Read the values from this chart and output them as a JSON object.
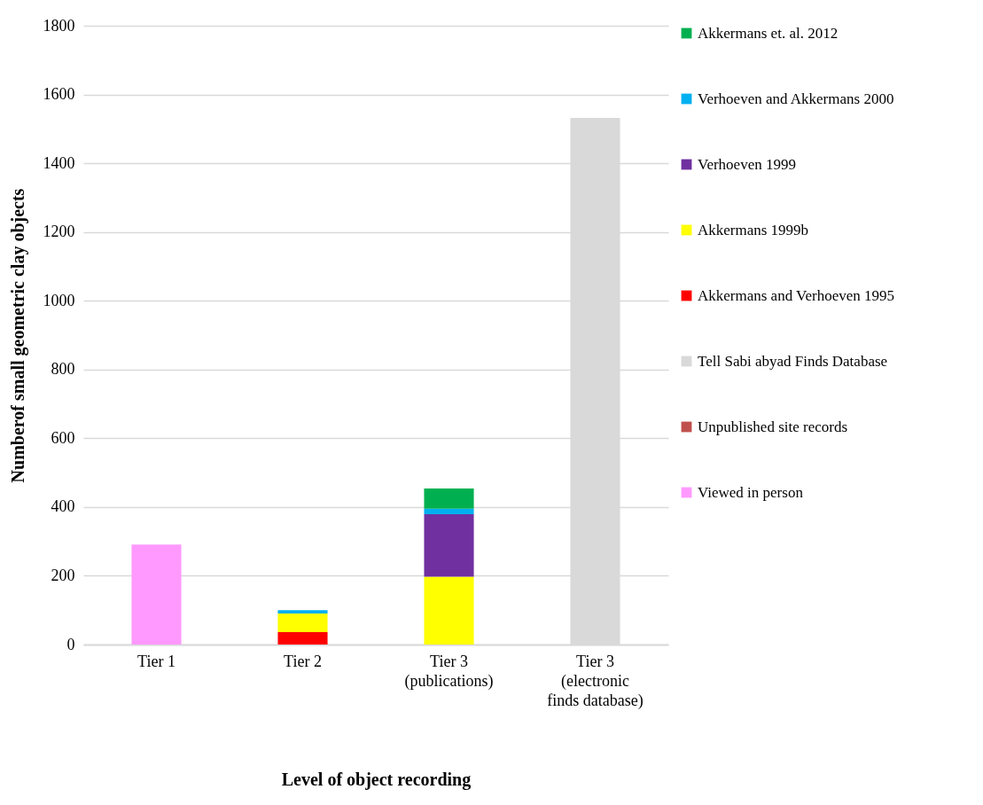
{
  "chart_data": {
    "type": "bar",
    "stacked": true,
    "xlabel": "Level of object recording",
    "ylabel": "Numberof small geometric clay objects",
    "categories": [
      "Tier 1",
      "Tier 2",
      "Tier 3\n(publications)",
      "Tier 3\n(electronic\nfinds database)"
    ],
    "series": [
      {
        "name": "Viewed in person",
        "color": "#ff99ff",
        "values": [
          291,
          null,
          null,
          null
        ]
      },
      {
        "name": "Unpublished site records",
        "color": "#c0504d",
        "values": [
          null,
          null,
          null,
          null
        ]
      },
      {
        "name": "Tell Sabi abyad Finds Database",
        "color": "#d9d9d9",
        "values": [
          null,
          null,
          null,
          1532
        ]
      },
      {
        "name": "Akkermans and Verhoeven 1995",
        "color": "#ff0000",
        "values": [
          null,
          36,
          null,
          null
        ]
      },
      {
        "name": "Akkermans 1999b",
        "color": "#ffff00",
        "values": [
          null,
          54,
          197,
          null
        ]
      },
      {
        "name": "Verhoeven 1999",
        "color": "#7030a0",
        "values": [
          null,
          null,
          182,
          null
        ]
      },
      {
        "name": "Verhoeven and Akkermans 2000",
        "color": "#00b0f0",
        "values": [
          null,
          10,
          16,
          null
        ]
      },
      {
        "name": "Akkermans et. al.  2012",
        "color": "#00b050",
        "values": [
          null,
          null,
          59,
          null
        ]
      }
    ],
    "ylim": [
      0,
      1800
    ],
    "yticks": [
      0,
      200,
      400,
      600,
      800,
      1000,
      1200,
      1400,
      1600,
      1800
    ],
    "grid": "y",
    "legend": "right"
  }
}
